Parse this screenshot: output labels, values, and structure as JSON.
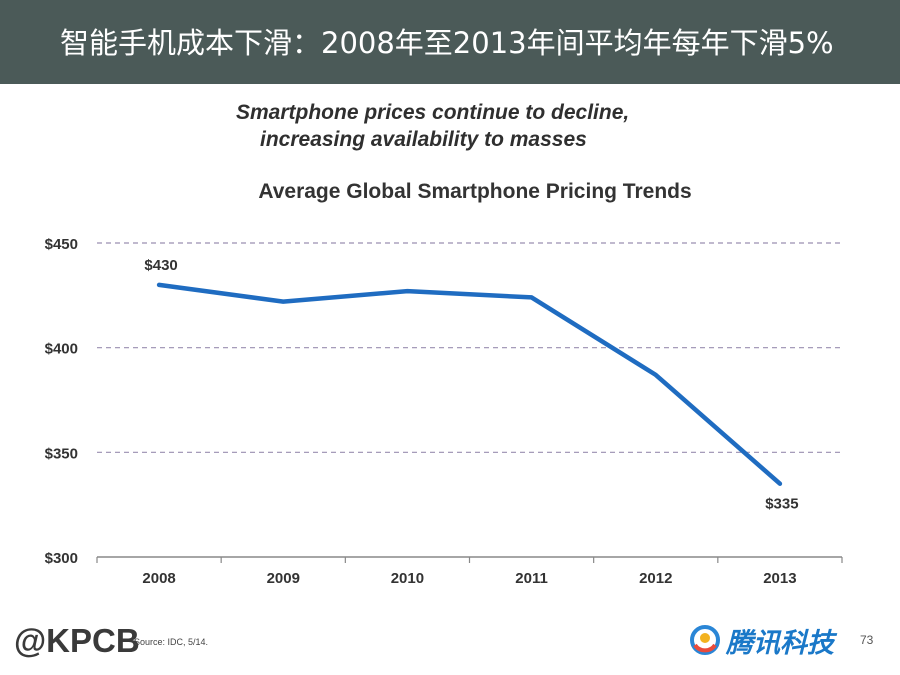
{
  "header": {
    "title": "智能手机成本下滑：2008年至2013年间平均年每年下滑5%"
  },
  "subtitle": {
    "line1": "Smartphone prices continue to decline,",
    "line2": "increasing availability to masses"
  },
  "chart_data": {
    "type": "line",
    "title": "Average Global Smartphone Pricing Trends",
    "categories": [
      "2008",
      "2009",
      "2010",
      "2011",
      "2012",
      "2013"
    ],
    "values": [
      430,
      422,
      427,
      424,
      387,
      335
    ],
    "ylim": [
      300,
      450
    ],
    "yticks": [
      300,
      350,
      400,
      450
    ],
    "ytick_labels": [
      "$300",
      "$350",
      "$400",
      "$450"
    ],
    "data_labels": [
      {
        "index": 0,
        "text": "$430"
      },
      {
        "index": 5,
        "text": "$335"
      }
    ],
    "xlabel": "",
    "ylabel": "",
    "grid": true,
    "line_color": "#1f6cc1",
    "grid_color": "#9a8fb0"
  },
  "footer": {
    "logo": "@KPCB",
    "source": "Source: IDC, 5/14.",
    "brand": "腾讯科技",
    "page_number": "73"
  }
}
